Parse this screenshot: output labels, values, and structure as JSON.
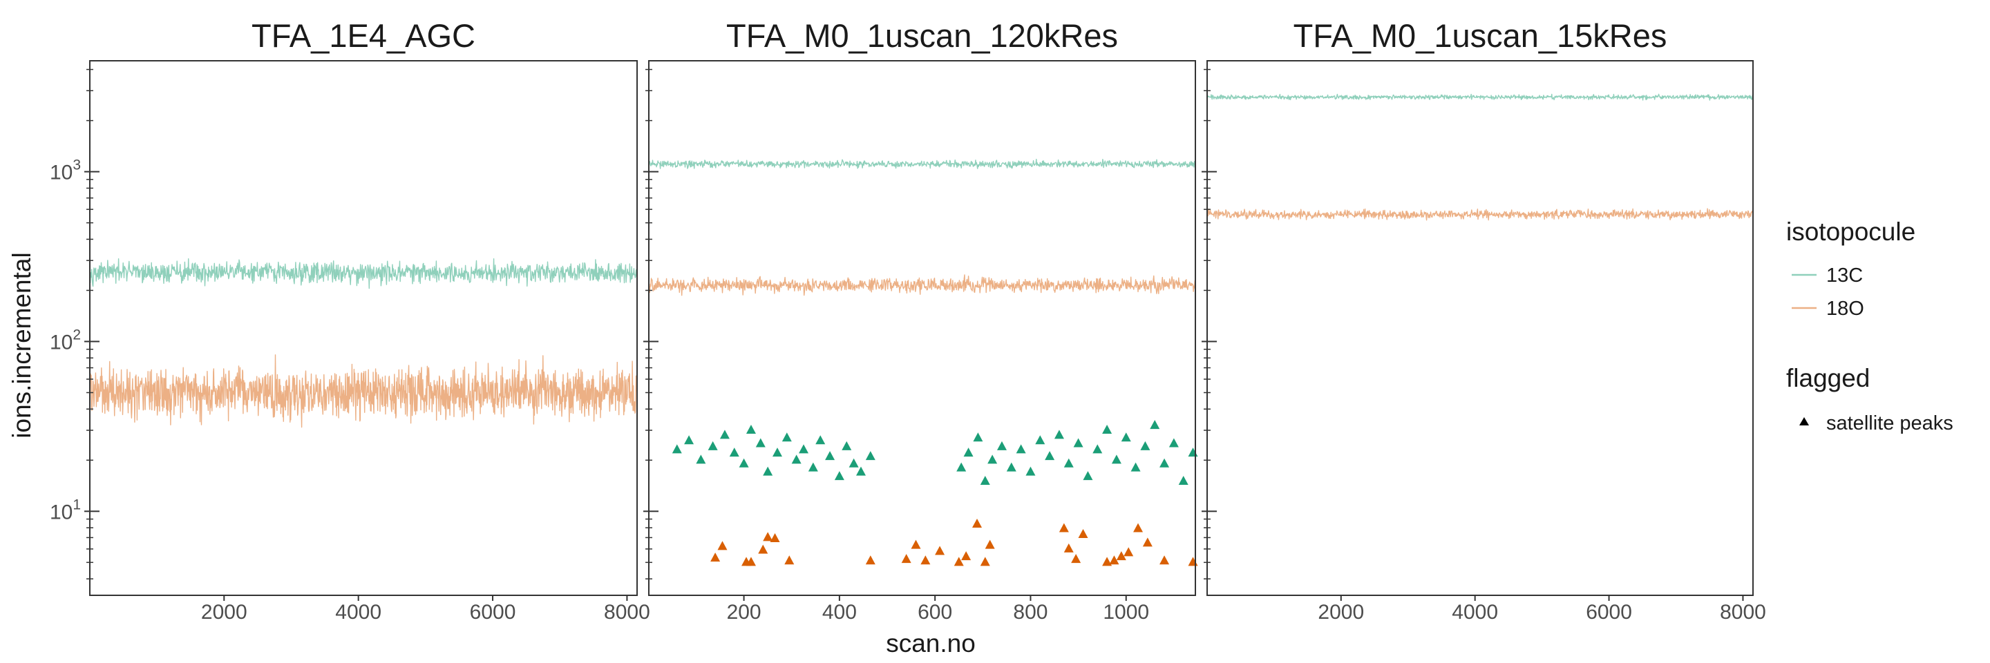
{
  "chart_data": {
    "type": "line",
    "y_scale": "log10",
    "ylim": [
      3.2,
      4500
    ],
    "y_ticks": [
      {
        "value": 10,
        "base": "10",
        "exp": "1"
      },
      {
        "value": 100,
        "base": "10",
        "exp": "2"
      },
      {
        "value": 1000,
        "base": "10",
        "exp": "3"
      }
    ],
    "xlabel": "scan.no",
    "ylabel": "ions.incremental",
    "grid": false,
    "legend_placement": "right",
    "colors": {
      "13C": "#8fd0bb",
      "18O": "#ecb085",
      "13C_flag": "#1b9e77",
      "18O_flag": "#d95f02"
    },
    "legend": {
      "isotopocule_title": "isotopocule",
      "isotopocule_items": [
        "13C",
        "18O"
      ],
      "flagged_title": "flagged",
      "flagged_items": [
        "satellite peaks"
      ]
    },
    "panels": [
      {
        "title": "TFA_1E4_AGC",
        "xlim": [
          1,
          8150
        ],
        "x_ticks": [
          2000,
          4000,
          6000,
          8000
        ],
        "x_tick_labels": [
          "2000",
          "4000",
          "6000",
          "8000"
        ],
        "series": [
          {
            "name": "13C",
            "center": 255,
            "spread_log10": 0.06,
            "n_points": 1200
          },
          {
            "name": "18O",
            "center": 50,
            "spread_log10": 0.14,
            "n_points": 1600
          }
        ],
        "flagged": []
      },
      {
        "title": "TFA_M0_1uscan_120kRes",
        "xlim": [
          1,
          1145
        ],
        "x_ticks": [
          200,
          400,
          600,
          800,
          1000
        ],
        "x_tick_labels": [
          "200",
          "400",
          "600",
          "800",
          "1000"
        ],
        "series": [
          {
            "name": "13C",
            "center": 1110,
            "spread_log10": 0.02,
            "n_points": 1145
          },
          {
            "name": "18O",
            "center": 215,
            "spread_log10": 0.04,
            "n_points": 1145
          }
        ],
        "flagged": [
          {
            "series": "13C",
            "label": "satellite peaks",
            "points": [
              [
                60,
                23
              ],
              [
                85,
                26
              ],
              [
                110,
                20
              ],
              [
                135,
                24
              ],
              [
                160,
                28
              ],
              [
                180,
                22
              ],
              [
                200,
                19
              ],
              [
                215,
                30
              ],
              [
                235,
                25
              ],
              [
                250,
                17
              ],
              [
                270,
                22
              ],
              [
                290,
                27
              ],
              [
                310,
                20
              ],
              [
                325,
                23
              ],
              [
                345,
                18
              ],
              [
                360,
                26
              ],
              [
                380,
                21
              ],
              [
                400,
                16
              ],
              [
                415,
                24
              ],
              [
                430,
                19
              ],
              [
                445,
                17
              ],
              [
                465,
                21
              ],
              [
                655,
                18
              ],
              [
                670,
                22
              ],
              [
                690,
                27
              ],
              [
                705,
                15
              ],
              [
                720,
                20
              ],
              [
                740,
                24
              ],
              [
                760,
                18
              ],
              [
                780,
                23
              ],
              [
                800,
                17
              ],
              [
                820,
                26
              ],
              [
                840,
                21
              ],
              [
                860,
                28
              ],
              [
                880,
                19
              ],
              [
                900,
                25
              ],
              [
                920,
                16
              ],
              [
                940,
                23
              ],
              [
                960,
                30
              ],
              [
                980,
                20
              ],
              [
                1000,
                27
              ],
              [
                1020,
                18
              ],
              [
                1040,
                24
              ],
              [
                1060,
                32
              ],
              [
                1080,
                19
              ],
              [
                1100,
                25
              ],
              [
                1120,
                15
              ],
              [
                1140,
                22
              ]
            ]
          },
          {
            "series": "18O",
            "label": "satellite peaks",
            "points": [
              [
                140,
                5.3
              ],
              [
                155,
                6.2
              ],
              [
                205,
                5.0
              ],
              [
                215,
                5.0
              ],
              [
                240,
                5.9
              ],
              [
                250,
                7.0
              ],
              [
                265,
                6.9
              ],
              [
                295,
                5.1
              ],
              [
                465,
                5.1
              ],
              [
                540,
                5.2
              ],
              [
                560,
                6.3
              ],
              [
                580,
                5.1
              ],
              [
                610,
                5.8
              ],
              [
                650,
                5.0
              ],
              [
                665,
                5.4
              ],
              [
                688,
                8.4
              ],
              [
                705,
                5.0
              ],
              [
                715,
                6.3
              ],
              [
                870,
                7.9
              ],
              [
                880,
                6.0
              ],
              [
                895,
                5.2
              ],
              [
                910,
                7.3
              ],
              [
                960,
                5.0
              ],
              [
                975,
                5.1
              ],
              [
                990,
                5.4
              ],
              [
                1005,
                5.7
              ],
              [
                1025,
                7.9
              ],
              [
                1045,
                6.5
              ],
              [
                1080,
                5.1
              ],
              [
                1140,
                5.0
              ]
            ]
          }
        ]
      },
      {
        "title": "TFA_M0_1uscan_15kRes",
        "xlim": [
          1,
          8150
        ],
        "x_ticks": [
          2000,
          4000,
          6000,
          8000
        ],
        "x_tick_labels": [
          "2000",
          "4000",
          "6000",
          "8000"
        ],
        "series": [
          {
            "name": "13C",
            "center": 2750,
            "spread_log10": 0.012,
            "n_points": 1200
          },
          {
            "name": "18O",
            "center": 560,
            "spread_log10": 0.025,
            "n_points": 1200
          }
        ],
        "flagged": []
      }
    ]
  }
}
